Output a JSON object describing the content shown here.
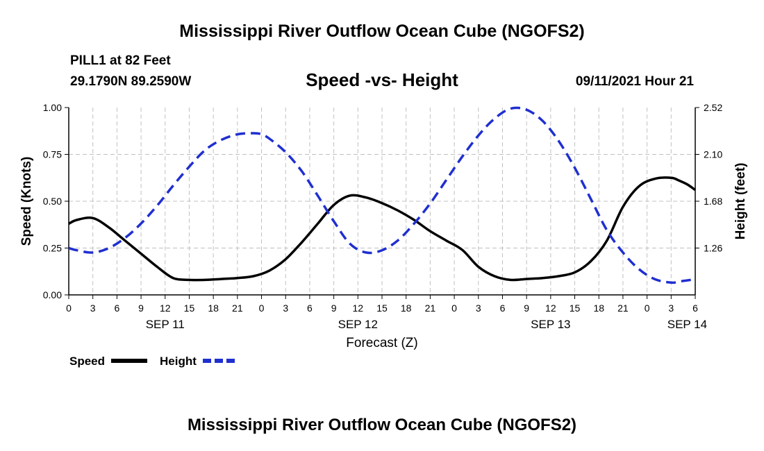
{
  "title_top": "Mississippi River Outflow Ocean Cube (NGOFS2)",
  "title_bottom": "Mississippi River Outflow Ocean Cube (NGOFS2)",
  "station": {
    "name": "PILL1 at 82 Feet",
    "coords": "29.1790N  89.2590W"
  },
  "plot_title": "Speed -vs- Height",
  "timestamp": "09/11/2021 Hour 21",
  "colors": {
    "speed": "#000000",
    "height": "#1f2fd0",
    "grid": "#c0c0c0"
  },
  "chart_data": {
    "type": "line",
    "xlabel": "Forecast (Z)",
    "ylabel_left": "Speed (Knots)",
    "ylabel_right": "Height (feet)",
    "x_hours_range": [
      0,
      78
    ],
    "x_tick_labels": [
      "0",
      "3",
      "6",
      "9",
      "12",
      "15",
      "18",
      "21",
      "0",
      "3",
      "6",
      "9",
      "12",
      "15",
      "18",
      "21",
      "0",
      "3",
      "6",
      "9",
      "12",
      "15",
      "18",
      "21",
      "0",
      "3",
      "6"
    ],
    "date_labels": [
      {
        "label": "SEP 11",
        "hour": 12
      },
      {
        "label": "SEP 12",
        "hour": 36
      },
      {
        "label": "SEP 13",
        "hour": 60
      },
      {
        "label": "SEP 14",
        "hour": 77
      }
    ],
    "ylim_left": [
      0,
      1.0
    ],
    "yticks_left": [
      "0.00",
      "0.25",
      "0.50",
      "0.75",
      "1.00"
    ],
    "yticks_left_values": [
      0,
      0.25,
      0.5,
      0.75,
      1.0
    ],
    "ylim_right": [
      0.84,
      2.52
    ],
    "yticks_right": [
      "1.26",
      "1.68",
      "2.10",
      "2.52"
    ],
    "yticks_right_values": [
      1.26,
      1.68,
      2.1,
      2.52
    ],
    "series": [
      {
        "name": "Speed",
        "axis": "left",
        "x": [
          0,
          1,
          3,
          5,
          7,
          9,
          11,
          13,
          15,
          17,
          19,
          21,
          23,
          25,
          27,
          29,
          31,
          33,
          35,
          37,
          39,
          41,
          43,
          45,
          47,
          49,
          51,
          53,
          55,
          57,
          59,
          61,
          63,
          65,
          67,
          69,
          71,
          73,
          75,
          76,
          77,
          78
        ],
        "y": [
          0.38,
          0.4,
          0.41,
          0.36,
          0.29,
          0.22,
          0.15,
          0.09,
          0.08,
          0.08,
          0.085,
          0.09,
          0.1,
          0.13,
          0.19,
          0.28,
          0.38,
          0.48,
          0.53,
          0.52,
          0.49,
          0.45,
          0.4,
          0.34,
          0.29,
          0.24,
          0.15,
          0.1,
          0.08,
          0.085,
          0.09,
          0.1,
          0.12,
          0.18,
          0.29,
          0.47,
          0.58,
          0.62,
          0.625,
          0.61,
          0.59,
          0.56
        ]
      },
      {
        "name": "Height",
        "axis": "right",
        "x": [
          0,
          1,
          3,
          5,
          7,
          9,
          11,
          13,
          15,
          17,
          19,
          21,
          23,
          24,
          25,
          27,
          29,
          31,
          33,
          35,
          37,
          39,
          41,
          43,
          45,
          47,
          49,
          51,
          53,
          55,
          57,
          59,
          61,
          63,
          65,
          67,
          69,
          71,
          73,
          75,
          76,
          77,
          78
        ],
        "y": [
          1.26,
          1.24,
          1.22,
          1.26,
          1.35,
          1.48,
          1.64,
          1.82,
          1.99,
          2.14,
          2.23,
          2.28,
          2.29,
          2.28,
          2.24,
          2.12,
          1.95,
          1.73,
          1.5,
          1.3,
          1.22,
          1.24,
          1.33,
          1.48,
          1.66,
          1.87,
          2.08,
          2.27,
          2.42,
          2.51,
          2.5,
          2.4,
          2.22,
          1.98,
          1.7,
          1.42,
          1.22,
          1.07,
          0.98,
          0.95,
          0.96,
          0.97,
          0.98
        ]
      }
    ],
    "legend": [
      {
        "label": "Speed",
        "style": "solid"
      },
      {
        "label": "Height",
        "style": "dashed"
      }
    ]
  }
}
